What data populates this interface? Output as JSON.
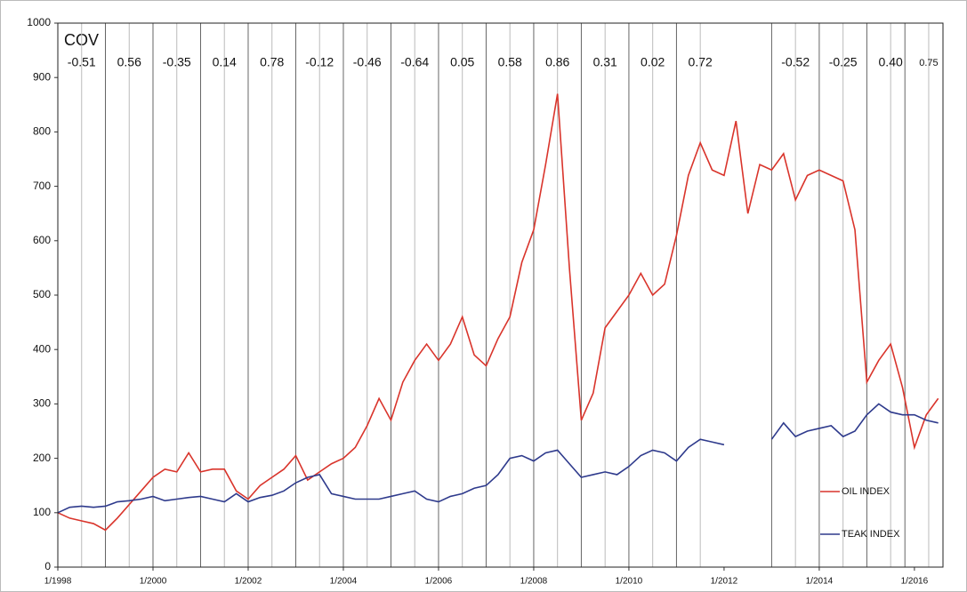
{
  "chart_data": {
    "type": "line",
    "annotation_title": "COV",
    "annotations": [
      {
        "x": 1998.5,
        "text": "-0.51"
      },
      {
        "x": 1999.5,
        "text": "0.56"
      },
      {
        "x": 2000.5,
        "text": "-0.35"
      },
      {
        "x": 2001.5,
        "text": "0.14"
      },
      {
        "x": 2002.5,
        "text": "0.78"
      },
      {
        "x": 2003.5,
        "text": "-0.12"
      },
      {
        "x": 2004.5,
        "text": "-0.46"
      },
      {
        "x": 2005.5,
        "text": "-0.64"
      },
      {
        "x": 2006.5,
        "text": "0.05"
      },
      {
        "x": 2007.5,
        "text": "0.58"
      },
      {
        "x": 2008.5,
        "text": "0.86"
      },
      {
        "x": 2009.5,
        "text": "0.31"
      },
      {
        "x": 2010.5,
        "text": "0.02"
      },
      {
        "x": 2011.5,
        "text": "0.72"
      },
      {
        "x": 2013.5,
        "text": "-0.52"
      },
      {
        "x": 2014.5,
        "text": "-0.25"
      },
      {
        "x": 2015.5,
        "text": "0.40"
      },
      {
        "x": 2016.3,
        "text": "0.75"
      }
    ],
    "x": [
      1998,
      1998.25,
      1998.5,
      1998.75,
      1999,
      1999.25,
      1999.5,
      1999.75,
      2000,
      2000.25,
      2000.5,
      2000.75,
      2001,
      2001.25,
      2001.5,
      2001.75,
      2002,
      2002.25,
      2002.5,
      2002.75,
      2003,
      2003.25,
      2003.5,
      2003.75,
      2004,
      2004.25,
      2004.5,
      2004.75,
      2005,
      2005.25,
      2005.5,
      2005.75,
      2006,
      2006.25,
      2006.5,
      2006.75,
      2007,
      2007.25,
      2007.5,
      2007.75,
      2008,
      2008.25,
      2008.5,
      2008.75,
      2009,
      2009.25,
      2009.5,
      2009.75,
      2010,
      2010.25,
      2010.5,
      2010.75,
      2011,
      2011.25,
      2011.5,
      2011.75,
      2012,
      2012.25,
      2012.5,
      2012.75,
      2013,
      2013.25,
      2013.5,
      2013.75,
      2014,
      2014.25,
      2014.5,
      2014.75,
      2015,
      2015.25,
      2015.5,
      2015.75,
      2016,
      2016.25,
      2016.5
    ],
    "series": [
      {
        "name": "OIL INDEX",
        "color": "#d9342b",
        "values": [
          100,
          90,
          85,
          80,
          68,
          90,
          115,
          140,
          165,
          180,
          175,
          210,
          175,
          180,
          180,
          140,
          125,
          150,
          165,
          180,
          205,
          160,
          175,
          190,
          200,
          220,
          260,
          310,
          270,
          340,
          380,
          410,
          380,
          410,
          460,
          390,
          370,
          420,
          460,
          560,
          620,
          740,
          870,
          550,
          270,
          320,
          440,
          470,
          500,
          540,
          500,
          520,
          610,
          720,
          780,
          730,
          720,
          820,
          650,
          740,
          730,
          760,
          675,
          720,
          730,
          720,
          710,
          620,
          340,
          380,
          410,
          330,
          220,
          280,
          310
        ]
      },
      {
        "name": "TEAK INDEX",
        "color": "#2e3a8c",
        "values": [
          100,
          110,
          112,
          110,
          112,
          120,
          122,
          125,
          130,
          122,
          125,
          128,
          130,
          125,
          120,
          135,
          120,
          128,
          132,
          140,
          155,
          165,
          170,
          135,
          130,
          125,
          125,
          125,
          130,
          135,
          140,
          125,
          120,
          130,
          135,
          145,
          150,
          170,
          200,
          205,
          195,
          210,
          215,
          190,
          165,
          170,
          175,
          170,
          185,
          205,
          215,
          210,
          195,
          220,
          235,
          230,
          225,
          null,
          null,
          null,
          235,
          265,
          240,
          250,
          255,
          260,
          240,
          250,
          280,
          300,
          285,
          280,
          280,
          270,
          265
        ]
      }
    ],
    "xlim": [
      1998,
      2016.6
    ],
    "xticks": [
      {
        "value": 1998,
        "label": "1/1998"
      },
      {
        "value": 2000,
        "label": "1/2000"
      },
      {
        "value": 2002,
        "label": "1/2002"
      },
      {
        "value": 2004,
        "label": "1/2004"
      },
      {
        "value": 2006,
        "label": "1/2006"
      },
      {
        "value": 2008,
        "label": "1/2008"
      },
      {
        "value": 2010,
        "label": "1/2010"
      },
      {
        "value": 2012,
        "label": "1/2012"
      },
      {
        "value": 2014,
        "label": "1/2014"
      },
      {
        "value": 2016,
        "label": "1/2016"
      }
    ],
    "ylim": [
      0,
      1000
    ],
    "yticks": [
      0,
      100,
      200,
      300,
      400,
      500,
      600,
      700,
      800,
      900,
      1000
    ],
    "legend": "lower right"
  }
}
